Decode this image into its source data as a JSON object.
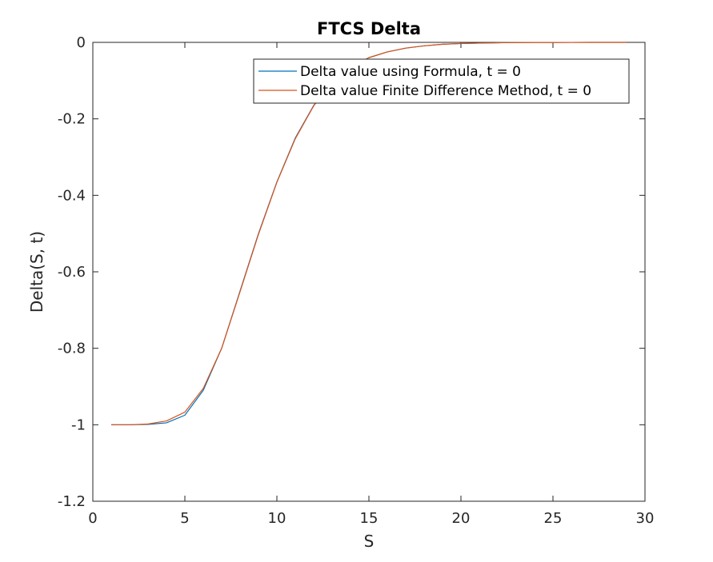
{
  "chart_data": {
    "type": "line",
    "title": "FTCS Delta",
    "xlabel": "S",
    "ylabel": "Delta(S, t)",
    "xlim": [
      0,
      30
    ],
    "ylim": [
      -1.2,
      0
    ],
    "xticks": [
      0,
      5,
      10,
      15,
      20,
      25,
      30
    ],
    "xtick_labels": [
      "0",
      "5",
      "10",
      "15",
      "20",
      "25",
      "30"
    ],
    "yticks": [
      -1.2,
      -1,
      -0.8,
      -0.6,
      -0.4,
      -0.2,
      0
    ],
    "ytick_labels": [
      "-1.2",
      "-1",
      "-0.8",
      "-0.6",
      "-0.4",
      "-0.2",
      "0"
    ],
    "grid": false,
    "legend_position": "top-right",
    "x": [
      1,
      2,
      3,
      4,
      5,
      6,
      7,
      8,
      9,
      10,
      11,
      12,
      13,
      14,
      15,
      16,
      17,
      18,
      19,
      20,
      21,
      22,
      23,
      24,
      25,
      26,
      27,
      28,
      29
    ],
    "series": [
      {
        "name": "Delta value using Formula, t = 0",
        "color": "#0072BD",
        "values": [
          -1.0,
          -1.0,
          -0.999,
          -0.995,
          -0.975,
          -0.91,
          -0.8,
          -0.65,
          -0.5,
          -0.365,
          -0.25,
          -0.165,
          -0.105,
          -0.065,
          -0.04,
          -0.025,
          -0.015,
          -0.009,
          -0.005,
          -0.003,
          -0.002,
          -0.001,
          -0.0005,
          -0.0003,
          -0.0002,
          -0.0001,
          -5e-05,
          0,
          0
        ]
      },
      {
        "name": "Delta value Finite Difference Method, t = 0",
        "color": "#D95319",
        "values": [
          -1.0,
          -1.0,
          -0.998,
          -0.99,
          -0.967,
          -0.905,
          -0.8,
          -0.652,
          -0.502,
          -0.366,
          -0.252,
          -0.166,
          -0.105,
          -0.064,
          -0.04,
          -0.025,
          -0.015,
          -0.009,
          -0.005,
          -0.003,
          -0.002,
          -0.001,
          -0.0005,
          -0.0003,
          -0.0002,
          -0.0001,
          -5e-05,
          0,
          0
        ]
      }
    ]
  }
}
